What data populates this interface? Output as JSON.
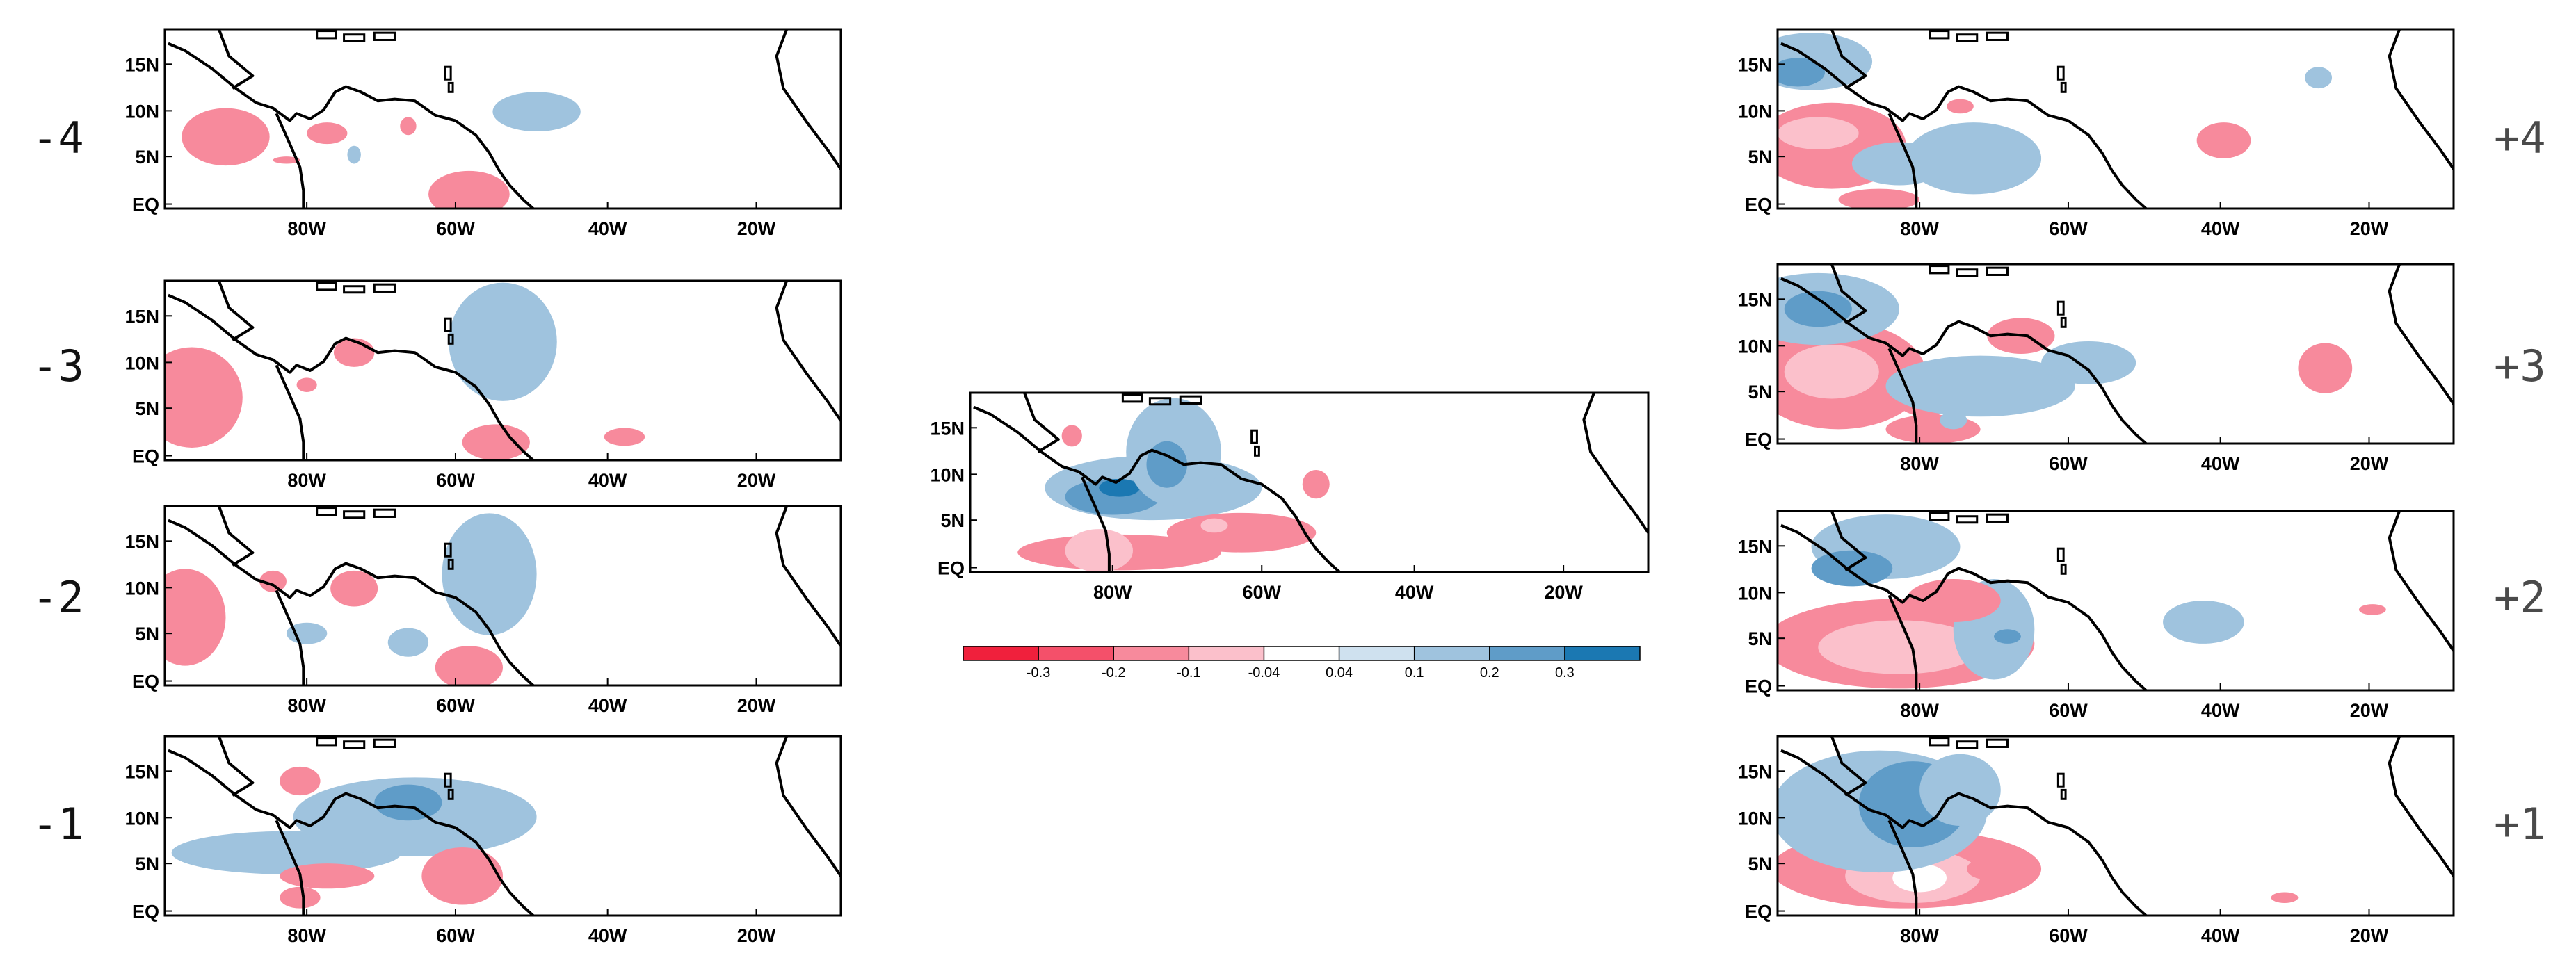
{
  "figure": {
    "lon_ticks": [
      "80W",
      "60W",
      "40W",
      "20W"
    ],
    "lat_ticks": [
      "15N",
      "10N",
      "5N",
      "EQ"
    ],
    "colorbar": {
      "tick_labels": [
        "-0.3",
        "-0.2",
        "-0.1",
        "-0.04",
        "0.04",
        "0.1",
        "0.2",
        "0.3"
      ],
      "colors": [
        "#f0203c",
        "#f4506a",
        "#f78a9c",
        "#fbc0cb",
        "#ffffff",
        "#cfe1ef",
        "#9fc3de",
        "#5f9cc8",
        "#1b78b2"
      ]
    },
    "panels": [
      {
        "id": "m4",
        "label": "-4"
      },
      {
        "id": "m3",
        "label": "-3"
      },
      {
        "id": "m2",
        "label": "-2"
      },
      {
        "id": "m1",
        "label": "-1"
      },
      {
        "id": "c0",
        "label": ""
      },
      {
        "id": "p4",
        "label": "+4"
      },
      {
        "id": "p3",
        "label": "+3"
      },
      {
        "id": "p2",
        "label": "+2"
      },
      {
        "id": "p1",
        "label": "+1"
      }
    ]
  }
}
